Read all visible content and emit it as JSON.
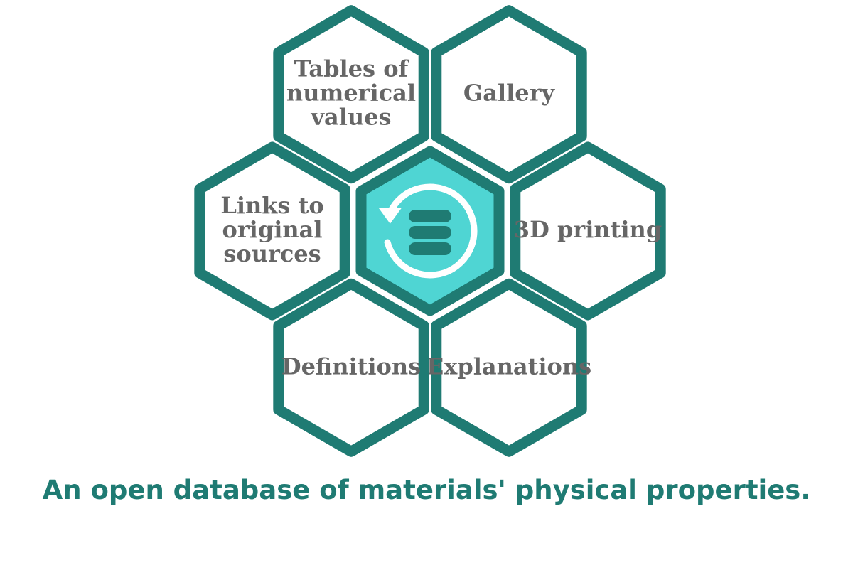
{
  "hexagons": [
    {
      "id": "tables",
      "label_lines": [
        "Tables of",
        "numerical",
        "values"
      ]
    },
    {
      "id": "gallery",
      "label_lines": [
        "Gallery"
      ]
    },
    {
      "id": "3d-printing",
      "label_lines": [
        "3D printing"
      ]
    },
    {
      "id": "explanations",
      "label_lines": [
        "Explanations"
      ]
    },
    {
      "id": "definitions",
      "label_lines": [
        "Definitions"
      ]
    },
    {
      "id": "links",
      "label_lines": [
        "Links to",
        "original",
        "sources"
      ]
    }
  ],
  "center": {
    "icon": "database-sync-icon"
  },
  "tagline": "An open database of materials' physical properties.",
  "colors": {
    "accent": "#1f7b73",
    "center_fill": "#4fd5d3",
    "label_text": "#666666",
    "hex_fill": "#ffffff"
  }
}
